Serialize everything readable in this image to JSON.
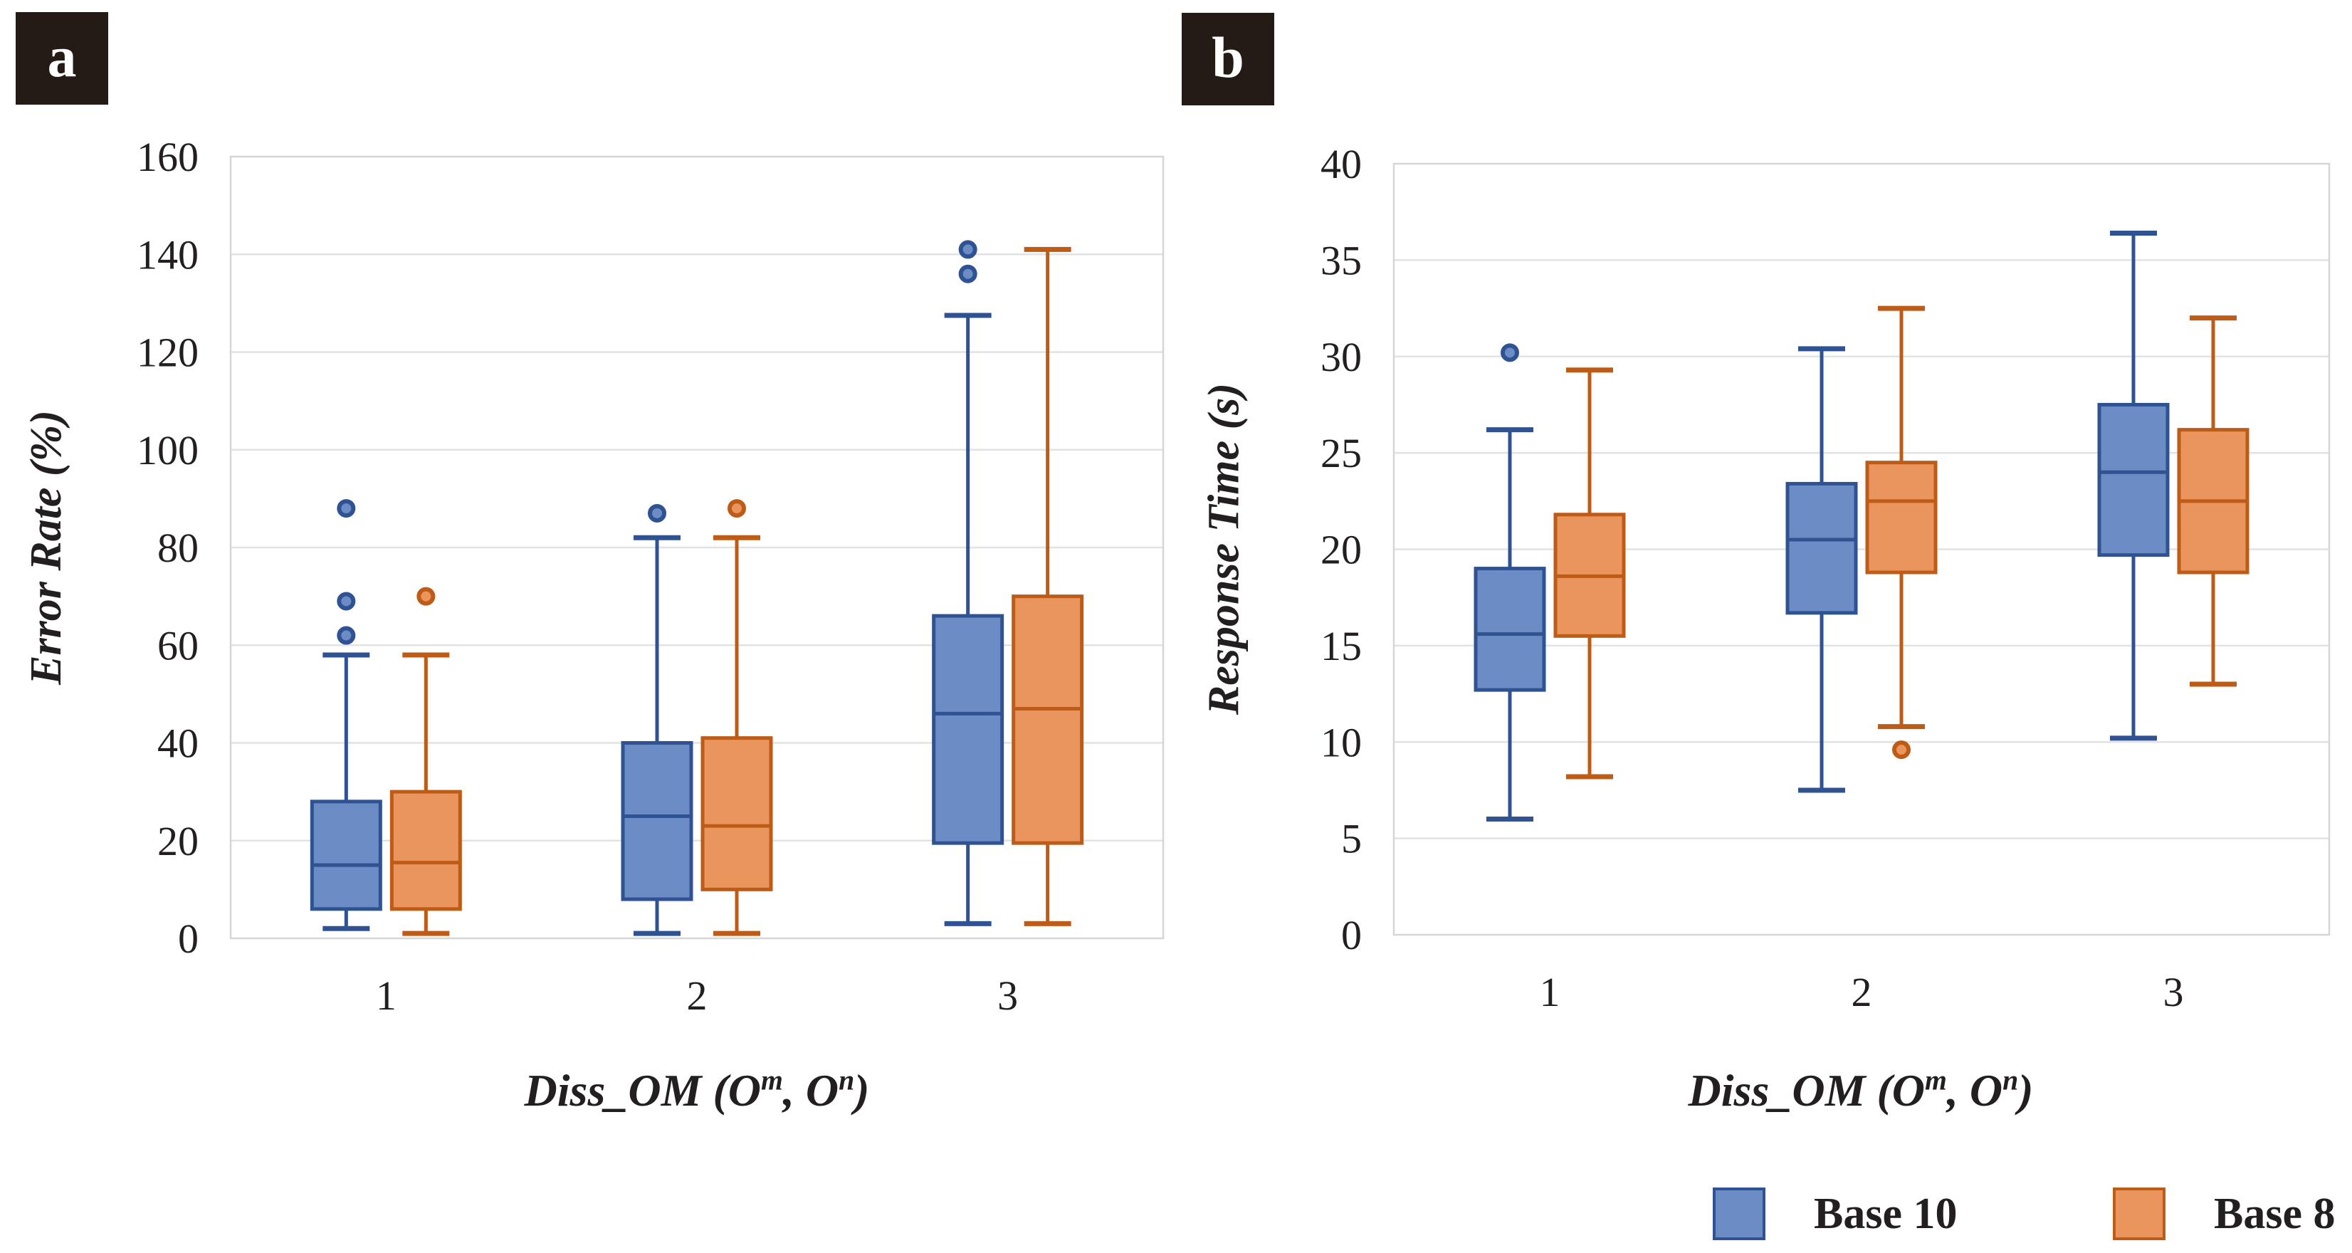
{
  "figure_colors": {
    "text": "#231F20",
    "gridline": "#E2E2E2",
    "plot_border": "#D6D6D6",
    "panel_tag_background": "#251B16",
    "blue_fill": "#6B8CC4",
    "blue_stroke": "#2F5292",
    "orange_fill": "#E9955D",
    "orange_stroke": "#BE5B17"
  },
  "chart_data": [
    {
      "type": "boxplot",
      "panel_label": "a",
      "ylabel": "Error Rate (%)",
      "xlabel_parts": [
        {
          "t": "Diss_OM (O"
        },
        {
          "t": "m",
          "sup": true
        },
        {
          "t": ", O"
        },
        {
          "t": "n",
          "sup": true
        },
        {
          "t": ")"
        }
      ],
      "ylim": [
        0,
        160
      ],
      "yticks": [
        0,
        20,
        40,
        60,
        80,
        100,
        120,
        140,
        160
      ],
      "grid": true,
      "categories": [
        "1",
        "2",
        "3"
      ],
      "series": [
        {
          "name": "Base 10",
          "fill": "#6B8CC4",
          "stroke": "#2F5292",
          "boxes": [
            {
              "low": 2,
              "q1": 6,
              "median": 15,
              "q3": 28,
              "high": 58,
              "outliers": [
                62,
                69,
                88
              ]
            },
            {
              "low": 1,
              "q1": 8,
              "median": 25,
              "q3": 40,
              "high": 82,
              "outliers": [
                87
              ]
            },
            {
              "low": 3,
              "q1": 19.5,
              "median": 46,
              "q3": 66,
              "high": 127.5,
              "outliers": [
                136,
                141
              ]
            }
          ]
        },
        {
          "name": "Base 8",
          "fill": "#E9955D",
          "stroke": "#BE5B17",
          "boxes": [
            {
              "low": 1,
              "q1": 6,
              "median": 15.5,
              "q3": 30,
              "high": 58,
              "outliers": [
                70
              ]
            },
            {
              "low": 1,
              "q1": 10,
              "median": 23,
              "q3": 41,
              "high": 82,
              "outliers": [
                88
              ]
            },
            {
              "low": 3,
              "q1": 19.5,
              "median": 47,
              "q3": 70,
              "high": 141,
              "outliers": []
            }
          ]
        }
      ]
    },
    {
      "type": "boxplot",
      "panel_label": "b",
      "ylabel": "Response Time (s)",
      "xlabel_parts": [
        {
          "t": "Diss_OM (O"
        },
        {
          "t": "m",
          "sup": true
        },
        {
          "t": ", O"
        },
        {
          "t": "n",
          "sup": true
        },
        {
          "t": ")"
        }
      ],
      "ylim": [
        0,
        40
      ],
      "yticks": [
        0,
        5,
        10,
        15,
        20,
        25,
        30,
        35,
        40
      ],
      "grid": true,
      "categories": [
        "1",
        "2",
        "3"
      ],
      "series": [
        {
          "name": "Base 10",
          "fill": "#6B8CC4",
          "stroke": "#2F5292",
          "boxes": [
            {
              "low": 6,
              "q1": 12.7,
              "median": 15.6,
              "q3": 19,
              "high": 26.2,
              "outliers": [
                30.2
              ]
            },
            {
              "low": 7.5,
              "q1": 16.7,
              "median": 20.5,
              "q3": 23.4,
              "high": 30.4,
              "outliers": []
            },
            {
              "low": 10.2,
              "q1": 19.7,
              "median": 24,
              "q3": 27.5,
              "high": 36.4,
              "outliers": []
            }
          ]
        },
        {
          "name": "Base 8",
          "fill": "#E9955D",
          "stroke": "#BE5B17",
          "boxes": [
            {
              "low": 8.2,
              "q1": 15.5,
              "median": 18.6,
              "q3": 21.8,
              "high": 29.3,
              "outliers": []
            },
            {
              "low": 10.8,
              "q1": 18.8,
              "median": 22.5,
              "q3": 24.5,
              "high": 32.5,
              "outliers": [
                9.6
              ]
            },
            {
              "low": 13,
              "q1": 18.8,
              "median": 22.5,
              "q3": 26.2,
              "high": 32,
              "outliers": []
            }
          ]
        }
      ]
    }
  ],
  "legend": {
    "position": "bottom-right",
    "items": [
      {
        "label": "Base 10",
        "fill": "#6B8CC4",
        "stroke": "#2F5292"
      },
      {
        "label": "Base 8",
        "fill": "#E9955D",
        "stroke": "#BE5B17"
      }
    ]
  }
}
